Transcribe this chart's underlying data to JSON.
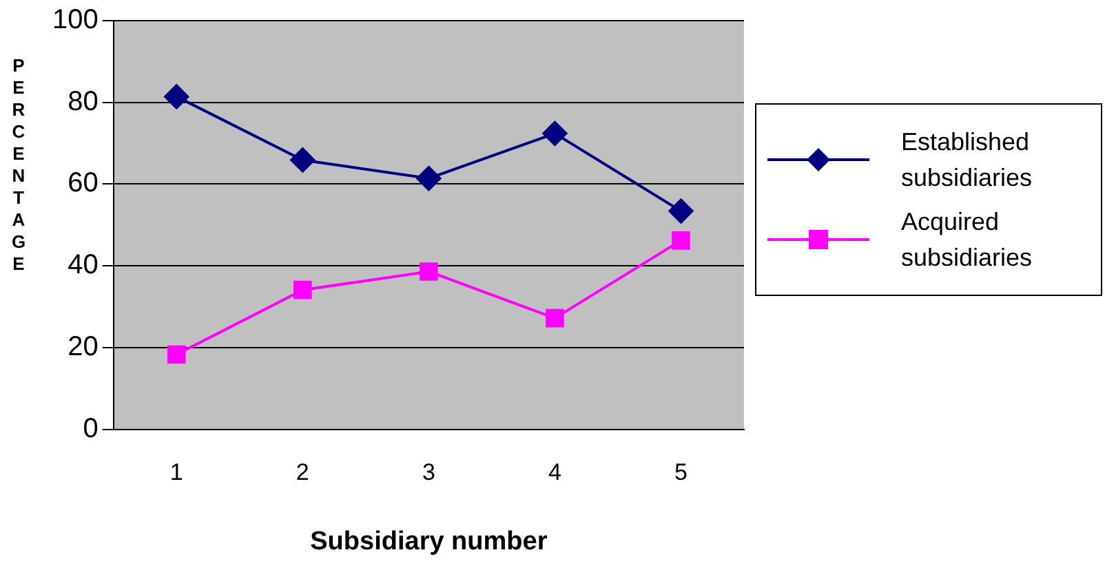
{
  "chart_data": {
    "type": "line",
    "xlabel": "Subsidiary number",
    "ylabel": "PERCENTAGE",
    "categories": [
      "1",
      "2",
      "3",
      "4",
      "5"
    ],
    "series": [
      {
        "name": "Established subsidiaries",
        "color": "#000080",
        "marker": "diamond",
        "values": [
          81.4,
          65.9,
          61.4,
          72.4,
          53.4
        ]
      },
      {
        "name": "Acquired subsidiaries",
        "color": "#ff00ff",
        "marker": "square",
        "values": [
          18.3,
          34.1,
          38.6,
          27.2,
          46.2
        ]
      }
    ],
    "ylim": [
      0,
      100
    ],
    "yticks": [
      0,
      20,
      40,
      60,
      80,
      100
    ],
    "grid": "y",
    "legend": "right"
  }
}
